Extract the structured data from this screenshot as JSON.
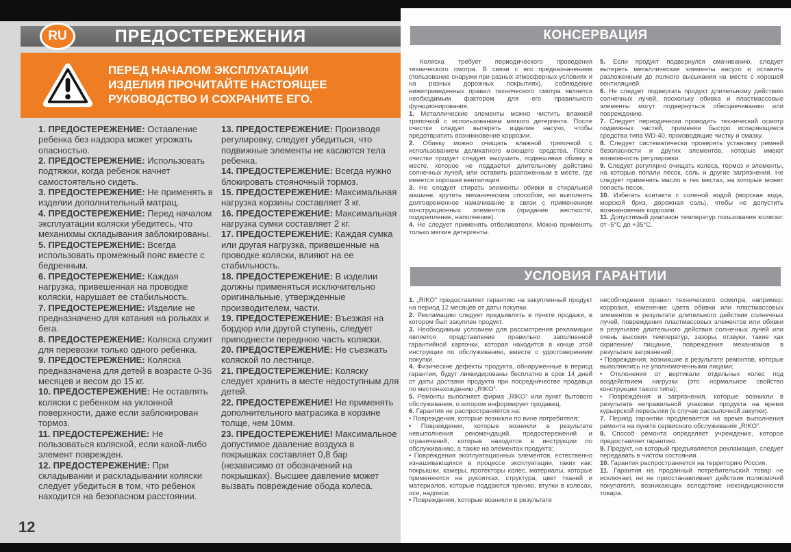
{
  "page": {
    "number": "12",
    "language_badge": "RU"
  },
  "colors": {
    "accent_orange": "#EE7D23",
    "warnings_header_gray": "#6E6E6E",
    "section_header_gray": "#98989C",
    "left_page_gray": "#D8D8D8",
    "black_strip": "#0E0E0E"
  },
  "warnings": {
    "title": "ПРЕДОСТЕРЕЖЕНИЯ",
    "notice": "ПЕРЕД НАЧАЛОМ ЭКСПЛУАТАЦИИ ИЗДЕЛИЯ ПРОЧИТАЙТЕ НАСТОЯЩЕЕ РУКОВОДСТВО И СОХРАНИТЕ ЕГО.",
    "columns": {
      "col1": [
        {
          "prefix": "1. ПРЕДОСТЕРЕЖЕНИЕ:",
          "text": "Оставление ребенка без надзора может угрожать опасностью."
        },
        {
          "prefix": "2. ПРЕДОСТЕРЕЖЕНИЕ:",
          "text": "Использовать подтяжки, когда ребенок начнет самостоятельно сидеть."
        },
        {
          "prefix": "3. ПРЕДОСТЕРЕЖЕНИЕ:",
          "text": "Не применять в изделии дополнительный матрац."
        },
        {
          "prefix": "4. ПРЕДОСТЕРЕЖЕНИЕ:",
          "text": "Перед началом эксплуатации коляски убедитесь, что механихмы складывания заблокированы."
        },
        {
          "prefix": "5. ПРЕДОСТЕРЕЖЕНИЕ:",
          "text": "Всегда использовать промежный пояс вместе с бедренным."
        },
        {
          "prefix": "6. ПРЕДОСТЕРЕЖЕНИЕ:",
          "text": "Каждая нагрузка, привешенная на проводке коляски, нарушает ее стабильность."
        },
        {
          "prefix": "7. ПРЕДОСТЕРЕЖЕНИЕ:",
          "text": "Изделие не предназначено для катания на рольках и бега."
        },
        {
          "prefix": "8. ПРЕДОСТЕРЕЖЕНИЕ:",
          "text": "Коляска служит для перевозки только одного ребенка."
        },
        {
          "prefix": "9. ПРЕДОСТЕРЕЖЕНИЕ:",
          "text": "Коляска предназначена для детей в возрасте 0-36 месяцев и весом до 15 кг."
        },
        {
          "prefix": "10. ПРЕДОСТЕРЕЖЕНИЕ:",
          "text": "Не оставлять коляски с ребенком на уклонной поверхности, даже если заблокирован тормоз."
        },
        {
          "prefix": "11. ПРЕДОСТЕРЕЖЕНИЕ:",
          "text": "Не пользоваться коляской, если какой-либо элемент поврежден."
        },
        {
          "prefix": "12. ПРЕДОСТЕРЕЖЕНИЕ:",
          "text": "При складывании и раскладывании коляски следует убедиться в том, что ребенок находится на безопасном расстоянии."
        }
      ],
      "col2": [
        {
          "prefix": "13. ПРЕДОСТЕРЕЖЕНИЕ:",
          "text": "Производя регулировку, следует убедиться, что подвижные элементы не касаются тела ребенка."
        },
        {
          "prefix": "14. ПРЕДОСТЕРЕЖЕНИЕ:",
          "text": "Всегда нужно блокировать стояночный тормоз."
        },
        {
          "prefix": "15. ПРЕДОСТЕРЕЖЕНИЕ:",
          "text": "Максимальная нагрузка корзины составляет 3 кг."
        },
        {
          "prefix": "16. ПРЕДОСТЕРЕЖЕНИЕ:",
          "text": "Максимальная нагрузка сумки составляет 2 кг."
        },
        {
          "prefix": "17. ПРЕДОСТЕРЕЖЕНИЕ:",
          "text": "Каждая сумка или другая нагрузка, привешенные на проводке коляски, влияют на ее стабильность."
        },
        {
          "prefix": "18. ПРЕДОСТЕРЕЖЕНИЕ:",
          "text": "В изделии должны применяться исключительно оригинальные, утвержденные производителем, части."
        },
        {
          "prefix": "19. ПРЕДОСТЕРЕЖЕНИЕ:",
          "text": "Въезжая на бордюр или другой ступень, следует приподнести переднюю часть коляски."
        },
        {
          "prefix": "20. ПРЕДОСТЕРЕЖЕНИЕ:",
          "text": "Не съезжать коляской по лестнице."
        },
        {
          "prefix": "21. ПРЕДОСТЕРЕЖЕНИЕ:",
          "text": "Коляску следует хранить в месте недоступным для детей."
        },
        {
          "prefix": "22. ПРЕДОСТЕРЕЖЕНИЕ!",
          "text": "Не применять дополнительного матрасика в корзине толще, чем 10мм."
        },
        {
          "prefix": "23. ПРЕДОСТЕРЕЖЕНИЕ!",
          "text": "Максимальное допустимое давление воздуха в покрышках составляет 0,8 бар (независимо от обозначений на покрышках). Высшее давление может вызвать повреждение обода колеса."
        }
      ]
    }
  },
  "conservation": {
    "title": "КОНСЕРВАЦИЯ",
    "columns": {
      "col1": [
        {
          "indent": true,
          "text": "Коляска требует периодического проведения технического смотра. В связи с его предназначением (пользование снаружи при разных атмосферных условиях и на разных дорожных покрытиях), соблюдение нижеприведенных правил технического смотра является необходимым фактором для его правильного функционирования."
        },
        {
          "prefix": "1.",
          "text": "Металлические элементы можно чистить влажной тряпочкой с использованием мягкого детергента. После очистки следует вытереть изделие насухо, чтобы предотвратить возникновение коррозии."
        },
        {
          "prefix": "2.",
          "text": "Обивку можно очищать влажной тряпочкой с использованием деликатного моющего средства. После очистки продукт следует высушить, подвешивая обивку в месте, которое не поддается длительному действию солнечных лучей, или оставить разложенным в месте, где имеется хорошая вентиляция."
        },
        {
          "prefix": "3.",
          "text": "Не следует стирать элементы обивки в стиральной машине, крутить механическим способом, ни выполнять долговременное намачивание в связи с применением конструкционных элементов (придание жесткости, подкрепление, наполнение)."
        },
        {
          "prefix": "4.",
          "text": "Не следует применять отбеливатели. Можно применять только мягкие детергенты."
        }
      ],
      "col2": [
        {
          "prefix": "5.",
          "text": "Если продукт подвернулся смачиванию, следует вытереть металлические элементы насухо и оставить разложенным до полного высыхания на месте с хорошей вентиляцией."
        },
        {
          "prefix": "6.",
          "text": "Не следует подвергать продукт длительному действию солнечных лучей, поскольку обивка и пластмассовые элементы могут подвернуться обесцвечиванию или повреждению."
        },
        {
          "prefix": "7.",
          "text": "Следует периодически проводить технический осмотр подвижных частей, применяя быстро испаряющиеся средства типа WD-40, производящие чистку и смазку."
        },
        {
          "prefix": "8.",
          "text": "Следует систематически проверять установку ремней безопасности и других элементов, которые имеют возможность регулировки."
        },
        {
          "prefix": "9.",
          "text": "Следует регулярно очищать колеса, тормоз и элементы, на которые попали песок, соль и другие загрязнения. Не следует применять масло в тех местах, на которые может попасть песок."
        },
        {
          "prefix": "10.",
          "text": "Избегать контакта с соленой водой (морская вода, морской бриз, дорожная соль), чтобы не допустить возникновение коррозии."
        },
        {
          "prefix": "11.",
          "text": "Допустимый диапазон температур пользования коляски: от -5°С до +35°С."
        }
      ]
    }
  },
  "warranty": {
    "title": "УСЛОВИЯ ГАРАНТИИ",
    "columns": {
      "col1": [
        {
          "prefix": "1.",
          "text": "„RIKO” предоставляет гарантию на закупленный продукт на период 12 месяцев от даты покупки."
        },
        {
          "prefix": "2.",
          "text": "Рекламацию следует предъявлять в пункте продажи, в котором был закуплен продукт."
        },
        {
          "prefix": "3.",
          "text": "Необходимым условием для рассмотрения рекламации является представление правильно заполненной гарантийной карточки, которая находится в конце этой инструкции по обслуживанию, вместе с удостоверением покупки."
        },
        {
          "prefix": "4.",
          "text": "Физические дефекты продукта, обнаруженные в период гарантии, будут ликвидированы бесплатно в срок 14 дней от даты доставки продукта при посредничестве продавца по местонахождению „RIKO”."
        },
        {
          "prefix": "5.",
          "text": "Ремонты выполняет фирма „RIKO” или пункт бытового обслуживания, о котором информирует продавец."
        },
        {
          "prefix": "6.",
          "text": "Гарантия не распространяется на:"
        },
        {
          "prefix": "•",
          "bold": false,
          "text": "Повреждения, которые возникли по вине потребителя;"
        },
        {
          "prefix": "•",
          "bold": false,
          "text": "Повреждения, которые возникли в результате невыполнения рекомендаций, предостережений и ограничений, которые находятся в инструкции по обслуживанию, а также на элементах продукта;"
        },
        {
          "prefix": "•",
          "bold": false,
          "text": "Повреждения эксплуатационных элементов, естественно изнашивающихся в процессе эксплуатации, таких как: покрышки, камеры, протекторы колес, материалы, которые применяются на рукоятках, структура, цвет тканей и материалов, которые поддаются трению, втулки в колесах, оси, надписи;"
        },
        {
          "prefix": "•",
          "bold": false,
          "text": "Повреждения, которые возникли в результате"
        }
      ],
      "col2": [
        {
          "text": "несоблюдения правил технического осмотра, например: коррозия, изменение цвета обивки или пластмассовых элементов в результате длительного действия солнечных лучей, повреждения пластмассовых элементов или обивки в результате длительного действия солнечных лучей или очень высоких температур, зазоры, отзвуки, такие как скрипение/ пищание, повреждения механизмов в результате загрязнений;"
        },
        {
          "prefix": "•",
          "bold": false,
          "text": "Повреждения, возникшие в результате ремонтов, которые выполнялись не уполномоченными лицами;"
        },
        {
          "prefix": "•",
          "bold": false,
          "text": "Отклонения от вертикали отдельных колес под воздействием нагрузки (это нормальное свойство конструкции такого типа);"
        },
        {
          "prefix": "•",
          "bold": false,
          "text": "Повреждения и загрязнения, которые возникли в результате неправильной упаковки продукта на время курьерской пересылки (в случае рассылочной закупки)."
        },
        {
          "prefix": "7.",
          "text": "Период гарантии продлевается на время выполнения ремонта на пункте сервисного обслуживания „RIKO”."
        },
        {
          "prefix": "8.",
          "text": "Способ ремонта определяет учреждение, которое предоставляет гарантию."
        },
        {
          "prefix": "9.",
          "text": "Продукт, на который предъявляется рекламация, следует передавать в чистом состоянии."
        },
        {
          "prefix": "10.",
          "text": "Гарантия распространяется на территорию Россия."
        },
        {
          "prefix": "11.",
          "text": "Гарантия на проданный потребительский товар не исключает, ни не приостанавливает действия полномочий покупателя, возникающих вследствие некондиционности товара."
        }
      ]
    }
  }
}
